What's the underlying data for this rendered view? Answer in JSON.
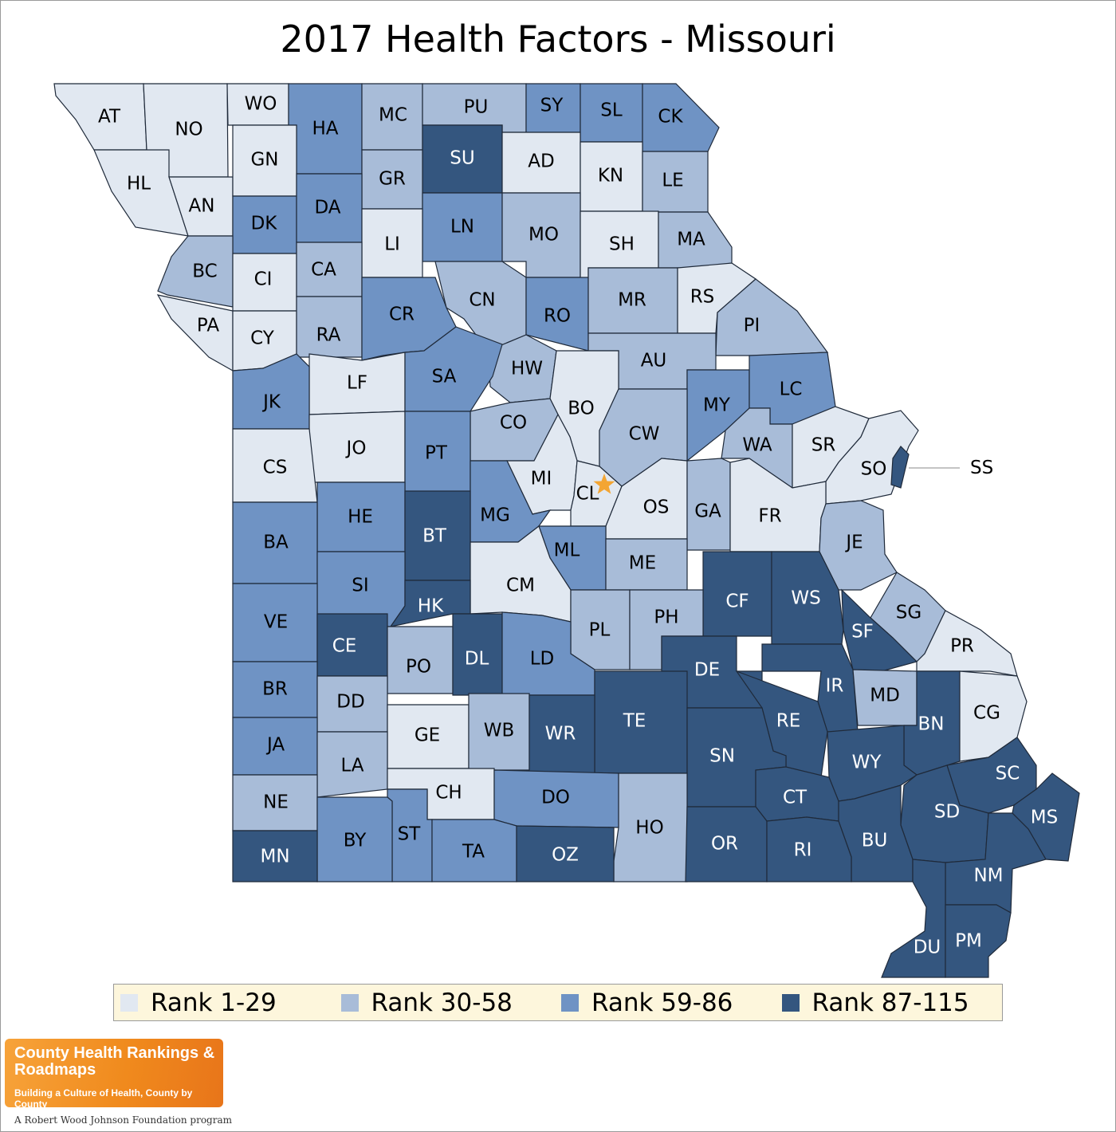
{
  "title": "2017 Health Factors - Missouri",
  "colors": {
    "tier1": "#e1e8f1",
    "tier2": "#a8bcd8",
    "tier3": "#6f93c4",
    "tier4": "#34567f",
    "marker": "#f3a533"
  },
  "legend": [
    {
      "label": "Rank 1-29",
      "tier": "tier1"
    },
    {
      "label": "Rank 30-58",
      "tier": "tier2"
    },
    {
      "label": "Rank 59-86",
      "tier": "tier3"
    },
    {
      "label": "Rank 87-115",
      "tier": "tier4"
    }
  ],
  "counties": [
    {
      "abbr": "AT",
      "tier": "tier1"
    },
    {
      "abbr": "NO",
      "tier": "tier1"
    },
    {
      "abbr": "WO",
      "tier": "tier1"
    },
    {
      "abbr": "HA",
      "tier": "tier3"
    },
    {
      "abbr": "MC",
      "tier": "tier2"
    },
    {
      "abbr": "PU",
      "tier": "tier2"
    },
    {
      "abbr": "SY",
      "tier": "tier3"
    },
    {
      "abbr": "SL",
      "tier": "tier3"
    },
    {
      "abbr": "CK",
      "tier": "tier3"
    },
    {
      "abbr": "HL",
      "tier": "tier1"
    },
    {
      "abbr": "AN",
      "tier": "tier1"
    },
    {
      "abbr": "GN",
      "tier": "tier1"
    },
    {
      "abbr": "SU",
      "tier": "tier4"
    },
    {
      "abbr": "AD",
      "tier": "tier1"
    },
    {
      "abbr": "KN",
      "tier": "tier1"
    },
    {
      "abbr": "LE",
      "tier": "tier2"
    },
    {
      "abbr": "GR",
      "tier": "tier2"
    },
    {
      "abbr": "DK",
      "tier": "tier3"
    },
    {
      "abbr": "DA",
      "tier": "tier3"
    },
    {
      "abbr": "LN",
      "tier": "tier3"
    },
    {
      "abbr": "MO",
      "tier": "tier2"
    },
    {
      "abbr": "LI",
      "tier": "tier1"
    },
    {
      "abbr": "SH",
      "tier": "tier1"
    },
    {
      "abbr": "MA",
      "tier": "tier2"
    },
    {
      "abbr": "BC",
      "tier": "tier2"
    },
    {
      "abbr": "CI",
      "tier": "tier1"
    },
    {
      "abbr": "CA",
      "tier": "tier2"
    },
    {
      "abbr": "CN",
      "tier": "tier2"
    },
    {
      "abbr": "RO",
      "tier": "tier3"
    },
    {
      "abbr": "MR",
      "tier": "tier2"
    },
    {
      "abbr": "RS",
      "tier": "tier1"
    },
    {
      "abbr": "PA",
      "tier": "tier1"
    },
    {
      "abbr": "CY",
      "tier": "tier1"
    },
    {
      "abbr": "RA",
      "tier": "tier2"
    },
    {
      "abbr": "CR",
      "tier": "tier3"
    },
    {
      "abbr": "PI",
      "tier": "tier2"
    },
    {
      "abbr": "AU",
      "tier": "tier2"
    },
    {
      "abbr": "HW",
      "tier": "tier2"
    },
    {
      "abbr": "LF",
      "tier": "tier1"
    },
    {
      "abbr": "SA",
      "tier": "tier3"
    },
    {
      "abbr": "JK",
      "tier": "tier3"
    },
    {
      "abbr": "BO",
      "tier": "tier1"
    },
    {
      "abbr": "MY",
      "tier": "tier3"
    },
    {
      "abbr": "LC",
      "tier": "tier3"
    },
    {
      "abbr": "CO",
      "tier": "tier2"
    },
    {
      "abbr": "CW",
      "tier": "tier2"
    },
    {
      "abbr": "WA",
      "tier": "tier2"
    },
    {
      "abbr": "SR",
      "tier": "tier1"
    },
    {
      "abbr": "JO",
      "tier": "tier1"
    },
    {
      "abbr": "PT",
      "tier": "tier3"
    },
    {
      "abbr": "CS",
      "tier": "tier1"
    },
    {
      "abbr": "SO",
      "tier": "tier1"
    },
    {
      "abbr": "SS",
      "tier": "tier4"
    },
    {
      "abbr": "MI",
      "tier": "tier1"
    },
    {
      "abbr": "CL",
      "tier": "tier1"
    },
    {
      "abbr": "OS",
      "tier": "tier1"
    },
    {
      "abbr": "GA",
      "tier": "tier2"
    },
    {
      "abbr": "FR",
      "tier": "tier1"
    },
    {
      "abbr": "HE",
      "tier": "tier3"
    },
    {
      "abbr": "MG",
      "tier": "tier3"
    },
    {
      "abbr": "BT",
      "tier": "tier4"
    },
    {
      "abbr": "BA",
      "tier": "tier3"
    },
    {
      "abbr": "JE",
      "tier": "tier2"
    },
    {
      "abbr": "ML",
      "tier": "tier3"
    },
    {
      "abbr": "ME",
      "tier": "tier2"
    },
    {
      "abbr": "CM",
      "tier": "tier1"
    },
    {
      "abbr": "CF",
      "tier": "tier4"
    },
    {
      "abbr": "WS",
      "tier": "tier4"
    },
    {
      "abbr": "SI",
      "tier": "tier3"
    },
    {
      "abbr": "HK",
      "tier": "tier4"
    },
    {
      "abbr": "SG",
      "tier": "tier2"
    },
    {
      "abbr": "VE",
      "tier": "tier3"
    },
    {
      "abbr": "PL",
      "tier": "tier2"
    },
    {
      "abbr": "PH",
      "tier": "tier2"
    },
    {
      "abbr": "SF",
      "tier": "tier4"
    },
    {
      "abbr": "PR",
      "tier": "tier1"
    },
    {
      "abbr": "CE",
      "tier": "tier4"
    },
    {
      "abbr": "PO",
      "tier": "tier2"
    },
    {
      "abbr": "DL",
      "tier": "tier4"
    },
    {
      "abbr": "LD",
      "tier": "tier3"
    },
    {
      "abbr": "DE",
      "tier": "tier4"
    },
    {
      "abbr": "IR",
      "tier": "tier4"
    },
    {
      "abbr": "BR",
      "tier": "tier3"
    },
    {
      "abbr": "MD",
      "tier": "tier2"
    },
    {
      "abbr": "DD",
      "tier": "tier2"
    },
    {
      "abbr": "TE",
      "tier": "tier4"
    },
    {
      "abbr": "BN",
      "tier": "tier4"
    },
    {
      "abbr": "CG",
      "tier": "tier1"
    },
    {
      "abbr": "RE",
      "tier": "tier4"
    },
    {
      "abbr": "GE",
      "tier": "tier1"
    },
    {
      "abbr": "WB",
      "tier": "tier2"
    },
    {
      "abbr": "WR",
      "tier": "tier4"
    },
    {
      "abbr": "JA",
      "tier": "tier3"
    },
    {
      "abbr": "SN",
      "tier": "tier4"
    },
    {
      "abbr": "WY",
      "tier": "tier4"
    },
    {
      "abbr": "LA",
      "tier": "tier2"
    },
    {
      "abbr": "SC",
      "tier": "tier4"
    },
    {
      "abbr": "CH",
      "tier": "tier1"
    },
    {
      "abbr": "NE",
      "tier": "tier2"
    },
    {
      "abbr": "DO",
      "tier": "tier3"
    },
    {
      "abbr": "CT",
      "tier": "tier4"
    },
    {
      "abbr": "SD",
      "tier": "tier4"
    },
    {
      "abbr": "MS",
      "tier": "tier4"
    },
    {
      "abbr": "HO",
      "tier": "tier2"
    },
    {
      "abbr": "ST",
      "tier": "tier3"
    },
    {
      "abbr": "BY",
      "tier": "tier3"
    },
    {
      "abbr": "BU",
      "tier": "tier4"
    },
    {
      "abbr": "MN",
      "tier": "tier4"
    },
    {
      "abbr": "OR",
      "tier": "tier4"
    },
    {
      "abbr": "RI",
      "tier": "tier4"
    },
    {
      "abbr": "TA",
      "tier": "tier3"
    },
    {
      "abbr": "OZ",
      "tier": "tier4"
    },
    {
      "abbr": "NM",
      "tier": "tier4"
    },
    {
      "abbr": "DU",
      "tier": "tier4"
    },
    {
      "abbr": "PM",
      "tier": "tier4"
    }
  ],
  "logo": {
    "line1": "County Health Rankings & Roadmaps",
    "line2": "Building a Culture of Health, County by County",
    "tagline": "A Robert Wood Johnson Foundation program"
  }
}
